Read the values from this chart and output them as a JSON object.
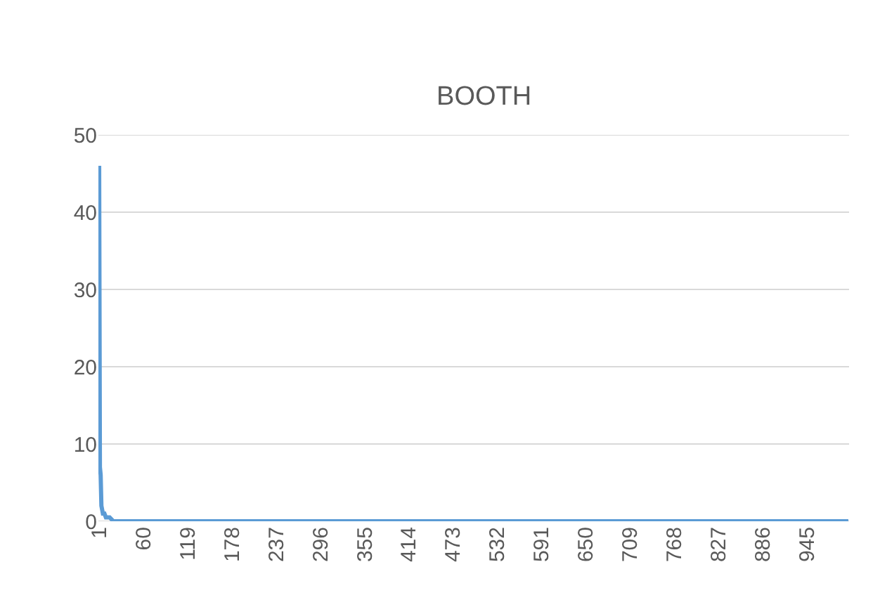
{
  "chart_data": {
    "type": "line",
    "title": "BOOTH",
    "x": [
      1,
      2,
      3,
      4,
      5,
      6,
      8,
      10,
      15,
      20,
      30,
      50,
      100,
      200,
      400,
      600,
      800,
      1000
    ],
    "series": [
      {
        "color": "#5b9bd5",
        "values": [
          46,
          7,
          6,
          2,
          1.5,
          1,
          1,
          0.5,
          0.5,
          0,
          0,
          0,
          0,
          0,
          0,
          0,
          0,
          0
        ]
      }
    ],
    "xlim": [
      0,
      1001
    ],
    "xticks": [
      1,
      60,
      119,
      178,
      237,
      296,
      355,
      414,
      473,
      532,
      591,
      650,
      709,
      768,
      827,
      886,
      945
    ],
    "ylim": [
      0,
      50
    ],
    "yticks": [
      0,
      10,
      20,
      30,
      40,
      50
    ],
    "grid": "y",
    "marker": "none",
    "line_style": "solid"
  }
}
